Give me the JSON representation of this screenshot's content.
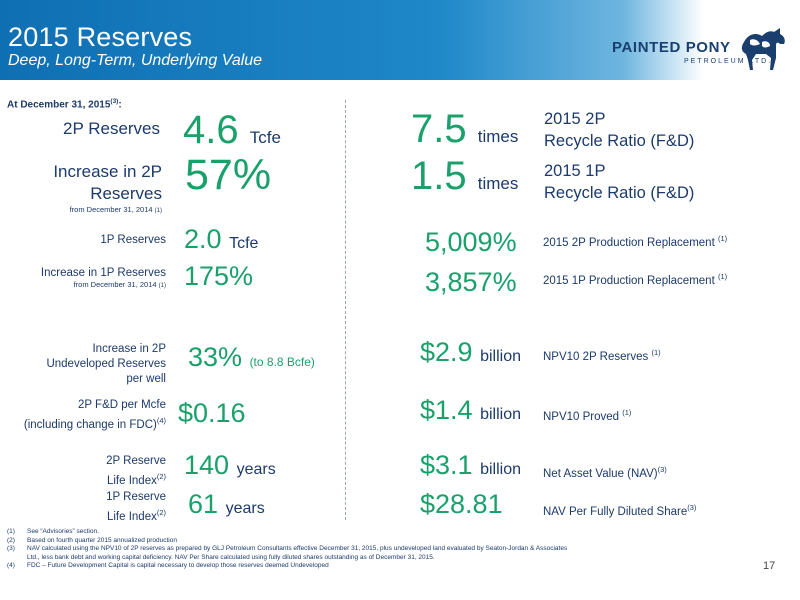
{
  "header": {
    "title": "2015 Reserves",
    "subtitle": "Deep, Long-Term, Underlying Value",
    "logo_name": "PAINTED PONY",
    "logo_sub": "PETROLEUM LTD."
  },
  "as_of": {
    "text": "At December 31, 2015",
    "sup": "(3)",
    "suffix": ":"
  },
  "left": {
    "reserves_2p": {
      "label": "2P Reserves",
      "value": "4.6",
      "unit": "Tcfe"
    },
    "increase_2p": {
      "label_line1": "Increase in 2P",
      "label_line2": "Reserves",
      "sublabel": "from December 31, 2014",
      "sublabel_sup": "(1)",
      "value": "57%"
    },
    "reserves_1p": {
      "label": "1P Reserves",
      "value": "2.0",
      "unit": "Tcfe"
    },
    "increase_1p": {
      "label": "Increase in 1P Reserves",
      "sublabel": "from December 31, 2014",
      "sublabel_sup": "(1)",
      "value": "175%"
    },
    "undeveloped": {
      "label_line1": "Increase in 2P",
      "label_line2": "Undeveloped Reserves",
      "label_line3": "per well",
      "value": "33%",
      "note": "(to 8.8 Bcfe)"
    },
    "fd_per_mcfe": {
      "label_line1": "2P F&D per Mcfe",
      "label_line2": "(including change in FDC)",
      "label_sup": "(4)",
      "value": "$0.16"
    },
    "life_2p": {
      "label_line1": "2P Reserve",
      "label_line2": "Life Index",
      "label_sup": "(2)",
      "value": "140",
      "unit": "years"
    },
    "life_1p": {
      "label_line1": "1P Reserve",
      "label_line2": "Life Index",
      "label_sup": "(2)",
      "value": "61",
      "unit": "years"
    }
  },
  "right": {
    "recycle_2p": {
      "value": "7.5",
      "unit": "times",
      "label_line1": "2015 2P",
      "label_line2": "Recycle Ratio (F&D)"
    },
    "recycle_1p": {
      "value": "1.5",
      "unit": "times",
      "label_line1": "2015 1P",
      "label_line2": "Recycle Ratio (F&D)"
    },
    "prod_repl_2p": {
      "value": "5,009%",
      "label": "2015 2P Production Replacement",
      "sup": "(1)"
    },
    "prod_repl_1p": {
      "value": "3,857%",
      "label": "2015 1P Production Replacement",
      "sup": "(1)"
    },
    "npv10_2p": {
      "value": "$2.9",
      "unit": "billion",
      "label": "NPV10 2P Reserves",
      "sup": "(1)"
    },
    "npv10_proved": {
      "value": "$1.4",
      "unit": "billion",
      "label": "NPV10 Proved",
      "sup": "(1)"
    },
    "nav": {
      "value": "$3.1",
      "unit": "billion",
      "label": "Net Asset Value (NAV)",
      "sup": "(3)"
    },
    "nav_per_share": {
      "value": "$28.81",
      "label": "NAV Per Fully Diluted Share",
      "sup": "(3)"
    }
  },
  "footnotes": [
    {
      "num": "(1)",
      "text": "See “Advisories” section."
    },
    {
      "num": "(2)",
      "text": "Based on fourth quarter 2015 annualized production"
    },
    {
      "num": "(3)",
      "text": "NAV calculated using the NPV10 of 2P reserves as prepared by GLJ Petroleum Consultants effective December 31, 2015, plus undeveloped land evaluated by Seaton-Jordan & Associates"
    },
    {
      "num": "",
      "text": "Ltd., less bank debt and working capital deficiency. NAV Per Share calculated using fully diluted shares outstanding as of December 31, 2015."
    },
    {
      "num": "(4)",
      "text": "FDC – Future Development Capital is capital necessary to develop those reserves deemed Undeveloped"
    }
  ],
  "page_number": "17",
  "colors": {
    "label": "#1c3a6b",
    "value": "#1aa06b",
    "header": "#1479be"
  }
}
